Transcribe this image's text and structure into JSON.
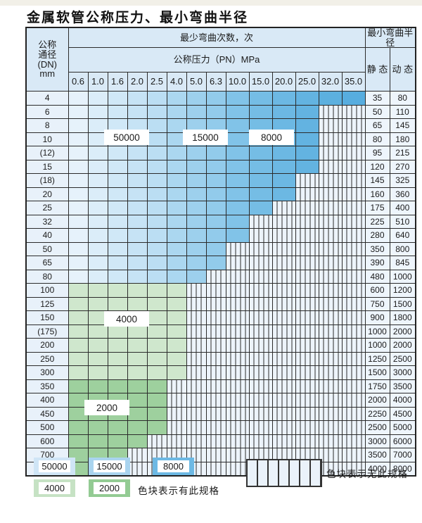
{
  "title": "金属软管公称压力、最小弯曲半径",
  "table": {
    "corner_lines": [
      "公称",
      "通径",
      "(DN)",
      "mm"
    ],
    "h_cycles": "最少弯曲次数，次",
    "h_pressure": "公称压力（PN）MPa",
    "h_radius": "最小弯曲半径",
    "h_static": "静 态",
    "h_dynamic": "动 态",
    "pressures": [
      "0.6",
      "1.0",
      "1.6",
      "2.0",
      "2.5",
      "4.0",
      "5.0",
      "6.3",
      "10.0",
      "15.0",
      "20.0",
      "25.0",
      "32.0",
      "35.0"
    ],
    "rows": [
      {
        "dn": "4",
        "colored": 14,
        "zone": "blue",
        "static": "35",
        "dynamic": "80"
      },
      {
        "dn": "6",
        "colored": 12,
        "zone": "blue",
        "static": "50",
        "dynamic": "110"
      },
      {
        "dn": "8",
        "colored": 12,
        "zone": "blue",
        "static": "65",
        "dynamic": "145"
      },
      {
        "dn": "10",
        "colored": 12,
        "zone": "blue",
        "static": "80",
        "dynamic": "180"
      },
      {
        "dn": "(12)",
        "colored": 12,
        "zone": "blue",
        "static": "95",
        "dynamic": "215"
      },
      {
        "dn": "15",
        "colored": 12,
        "zone": "blue",
        "static": "120",
        "dynamic": "270"
      },
      {
        "dn": "(18)",
        "colored": 11,
        "zone": "blue",
        "static": "145",
        "dynamic": "325"
      },
      {
        "dn": "20",
        "colored": 11,
        "zone": "blue",
        "static": "160",
        "dynamic": "360"
      },
      {
        "dn": "25",
        "colored": 10,
        "zone": "blue",
        "static": "175",
        "dynamic": "400"
      },
      {
        "dn": "32",
        "colored": 9,
        "zone": "blue",
        "static": "225",
        "dynamic": "510"
      },
      {
        "dn": "40",
        "colored": 9,
        "zone": "blue",
        "static": "280",
        "dynamic": "640"
      },
      {
        "dn": "50",
        "colored": 8,
        "zone": "blue",
        "static": "350",
        "dynamic": "800"
      },
      {
        "dn": "65",
        "colored": 8,
        "zone": "blue",
        "static": "390",
        "dynamic": "845"
      },
      {
        "dn": "80",
        "colored": 7,
        "zone": "blue",
        "static": "480",
        "dynamic": "1000"
      },
      {
        "dn": "100",
        "colored": 6,
        "zone": "green_4000",
        "static": "600",
        "dynamic": "1200"
      },
      {
        "dn": "125",
        "colored": 6,
        "zone": "green_4000",
        "static": "750",
        "dynamic": "1500"
      },
      {
        "dn": "150",
        "colored": 6,
        "zone": "green_4000",
        "static": "900",
        "dynamic": "1800"
      },
      {
        "dn": "(175)",
        "colored": 6,
        "zone": "green_4000",
        "static": "1000",
        "dynamic": "2000"
      },
      {
        "dn": "200",
        "colored": 6,
        "zone": "green_4000",
        "static": "1000",
        "dynamic": "2000"
      },
      {
        "dn": "250",
        "colored": 6,
        "zone": "green_4000",
        "static": "1250",
        "dynamic": "2500"
      },
      {
        "dn": "300",
        "colored": 6,
        "zone": "green_4000",
        "static": "1500",
        "dynamic": "3000"
      },
      {
        "dn": "350",
        "colored": 5,
        "zone": "green_2000",
        "static": "1750",
        "dynamic": "3500"
      },
      {
        "dn": "400",
        "colored": 5,
        "zone": "green_2000",
        "static": "2000",
        "dynamic": "4000"
      },
      {
        "dn": "450",
        "colored": 5,
        "zone": "green_2000",
        "static": "2250",
        "dynamic": "4500"
      },
      {
        "dn": "500",
        "colored": 5,
        "zone": "green_2000",
        "static": "2500",
        "dynamic": "5000"
      },
      {
        "dn": "600",
        "colored": 4,
        "zone": "green_2000",
        "static": "3000",
        "dynamic": "6000"
      },
      {
        "dn": "700",
        "colored": 3,
        "zone": "green_2000",
        "static": "3500",
        "dynamic": "7000"
      },
      {
        "dn": "800",
        "colored": 3,
        "zone": "green_2000",
        "static": "4000",
        "dynamic": "8000"
      }
    ]
  },
  "cycle_labels": {
    "l50000": "50000",
    "l15000": "15000",
    "l8000": "8000",
    "l4000": "4000",
    "l2000": "2000"
  },
  "legend": {
    "row1": [
      {
        "value": "50000",
        "color": "#cfe5f6"
      },
      {
        "value": "15000",
        "color": "#a9d4ef"
      },
      {
        "value": "8000",
        "color": "#6db9e4"
      }
    ],
    "row2": [
      {
        "value": "4000",
        "color": "#c6e2c4"
      },
      {
        "value": "2000",
        "color": "#93cb93"
      }
    ],
    "has_spec_text": "色块表示有此规格",
    "no_spec_text": "色块表示无此规格"
  },
  "colors": {
    "blue_shades": [
      "#e6f2fb",
      "#dbedf9",
      "#d0e8f7",
      "#c6e3f5",
      "#bbdef3",
      "#abd7f0",
      "#9dd0ed",
      "#92cbeb",
      "#81c3e8",
      "#75bde5",
      "#6cb8e3",
      "#63b3e1",
      "#5cb0df",
      "#57addf"
    ],
    "green_4000": "#cfe7cd",
    "green_2000": "#9ed09e",
    "hatch_bg": "#edf4fb",
    "border": "#2b2b2b"
  }
}
